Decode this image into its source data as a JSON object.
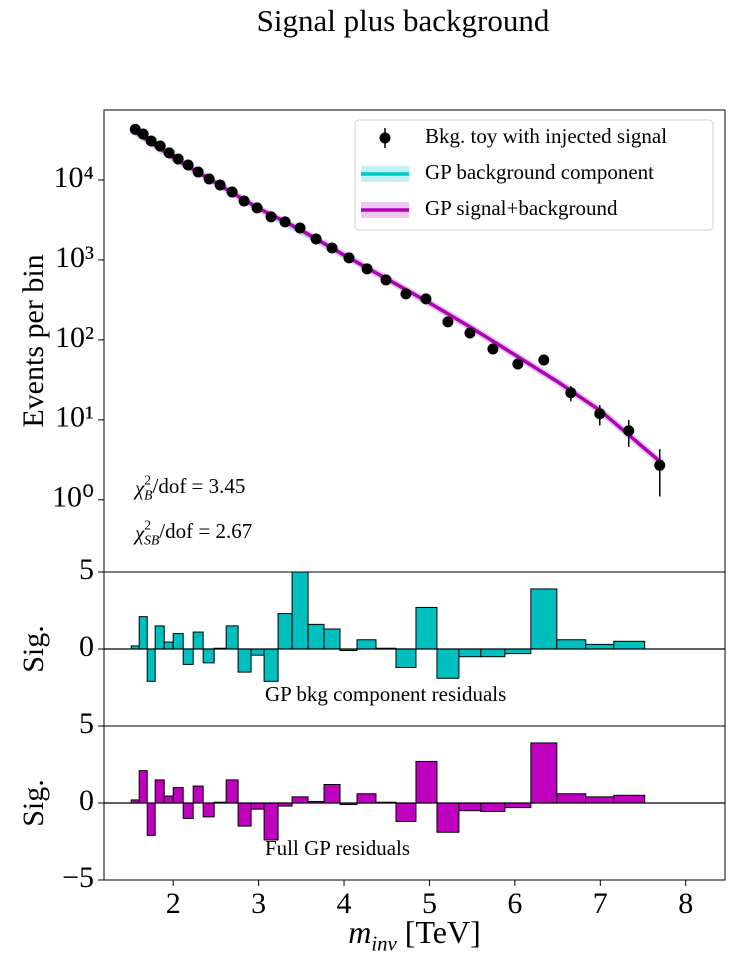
{
  "chart_data": [
    {
      "type": "line",
      "title": "Signal plus background",
      "ylabel": "Events per bin",
      "log_y": true,
      "legend": "upper right",
      "xlim": [
        1.19,
        8.46
      ],
      "ylim": [
        0.125,
        75000
      ],
      "yticks": [
        {
          "value": 1,
          "label": "10⁰"
        },
        {
          "value": 10,
          "label": "10¹"
        },
        {
          "value": 100,
          "label": "10²"
        },
        {
          "value": 1000,
          "label": "10³"
        },
        {
          "value": 10000,
          "label": "10⁴"
        }
      ],
      "series": [
        {
          "name": "Bkg. toy with injected signal",
          "style": "errorbar",
          "color": "#000000",
          "x": [
            1.556,
            1.649,
            1.743,
            1.848,
            1.953,
            2.058,
            2.175,
            2.292,
            2.421,
            2.55,
            2.69,
            2.83,
            2.982,
            3.146,
            3.31,
            3.485,
            3.673,
            3.86,
            4.058,
            4.269,
            4.491,
            4.725,
            4.959,
            5.216,
            5.474,
            5.743,
            6.035,
            6.339,
            6.655,
            6.994,
            7.333,
            7.696
          ],
          "values": [
            43000,
            37600,
            30700,
            26600,
            21800,
            18300,
            15400,
            12600,
            10300,
            8660,
            7080,
            5460,
            4470,
            3450,
            2990,
            2510,
            1830,
            1410,
            1060,
            772,
            562,
            376,
            326,
            168,
            122,
            77,
            50,
            56,
            21.8,
            11.9,
            7.3,
            2.7
          ],
          "errors": [
            207,
            194,
            175,
            163,
            148,
            135,
            124,
            112,
            101,
            93,
            84,
            74,
            67,
            59,
            55,
            50,
            43,
            38,
            33,
            28,
            24,
            19,
            18,
            13,
            11,
            8.8,
            7.1,
            7.5,
            4.7,
            3.4,
            2.7,
            1.6
          ]
        },
        {
          "name": "GP background component",
          "style": "line",
          "color": "#00c8c8",
          "band_color": "#b0eef0",
          "x": [
            1.55,
            2,
            2.5,
            3,
            3.3,
            3.5,
            4,
            4.5,
            5,
            5.5,
            6,
            6.5,
            7,
            7.7
          ],
          "values": [
            40000,
            19000,
            9200,
            4400,
            2900,
            2250,
            1150,
            580,
            290,
            140,
            65,
            30,
            13,
            3.0
          ]
        },
        {
          "name": "GP signal+background",
          "style": "line",
          "color": "#b400b4",
          "band_color": "#eab8ea",
          "x": [
            1.55,
            2,
            2.5,
            3,
            3.3,
            3.5,
            4,
            4.5,
            5,
            5.5,
            6,
            6.5,
            7,
            7.7
          ],
          "values": [
            40000,
            19000,
            9200,
            4400,
            3050,
            2350,
            1150,
            580,
            290,
            140,
            65,
            30,
            13,
            3.0
          ]
        }
      ],
      "annotations": [
        {
          "symbol": "χ",
          "sup": "2",
          "sub": "B",
          "text": "/dof = 3.45"
        },
        {
          "symbol": "χ",
          "sup": "2",
          "sub": "SB",
          "text": "/dof = 2.67"
        }
      ]
    },
    {
      "type": "histogram",
      "ylabel": "Sig.",
      "annotation": "GP bkg component residuals",
      "color": "#00bfbf",
      "xlim": [
        1.19,
        8.46
      ],
      "ylim": [
        -5,
        5
      ],
      "yticks": [
        0,
        5
      ],
      "bins": [
        1.509,
        1.602,
        1.696,
        1.789,
        1.895,
        2.0,
        2.117,
        2.234,
        2.351,
        2.48,
        2.62,
        2.76,
        2.912,
        3.064,
        3.228,
        3.392,
        3.579,
        3.766,
        3.953,
        4.152,
        4.374,
        4.608,
        4.842,
        5.088,
        5.345,
        5.602,
        5.883,
        6.187,
        6.491,
        6.83,
        7.158,
        7.52,
        7.906
      ],
      "values": [
        0.2,
        2.1,
        -2.1,
        1.5,
        0.45,
        1.0,
        -1.0,
        1.1,
        -0.9,
        0.05,
        1.5,
        -1.5,
        -0.4,
        -2.1,
        2.3,
        5.0,
        1.6,
        1.3,
        -0.1,
        0.6,
        0.05,
        -1.2,
        2.7,
        -1.9,
        -0.5,
        -0.5,
        -0.3,
        3.9,
        0.6,
        0.3,
        0.5,
        0
      ]
    },
    {
      "type": "histogram",
      "ylabel": "Sig.",
      "annotation": "Full GP residuals",
      "color": "#bf00bf",
      "xlabel": {
        "symbol": "m",
        "sub": "inv",
        "text": " [TeV]"
      },
      "xlim": [
        1.19,
        8.46
      ],
      "ylim": [
        -5,
        5
      ],
      "yticks": [
        {
          "value": -5,
          "label": "−5"
        },
        0,
        5
      ],
      "xticks": [
        2,
        3,
        4,
        5,
        6,
        7,
        8
      ],
      "bins": [
        1.509,
        1.602,
        1.696,
        1.789,
        1.895,
        2.0,
        2.117,
        2.234,
        2.351,
        2.48,
        2.62,
        2.76,
        2.912,
        3.064,
        3.228,
        3.392,
        3.579,
        3.766,
        3.953,
        4.152,
        4.374,
        4.608,
        4.842,
        5.088,
        5.345,
        5.602,
        5.883,
        6.187,
        6.491,
        6.83,
        7.158,
        7.52,
        7.906
      ],
      "values": [
        0.2,
        2.1,
        -2.1,
        1.5,
        0.45,
        1.0,
        -1.0,
        1.1,
        -0.9,
        0.05,
        1.5,
        -1.5,
        -0.4,
        -2.4,
        -0.2,
        0.4,
        0.1,
        1.2,
        -0.1,
        0.6,
        0.05,
        -1.2,
        2.7,
        -1.9,
        -0.5,
        -0.55,
        -0.3,
        3.9,
        0.6,
        0.4,
        0.5,
        0
      ]
    }
  ]
}
